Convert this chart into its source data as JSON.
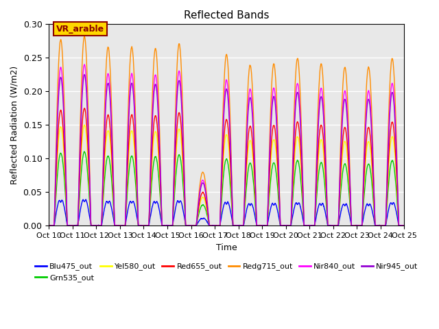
{
  "title": "Reflected Bands",
  "xlabel": "Time",
  "ylabel": "Reflected Radiation (W/m2)",
  "annotation": "VR_arable",
  "annotation_color": "#8B0000",
  "annotation_bg": "#FFD700",
  "ylim": [
    0,
    0.3
  ],
  "yticks": [
    0.0,
    0.05,
    0.1,
    0.15,
    0.2,
    0.25,
    0.3
  ],
  "xtick_labels": [
    "Oct 10",
    "Oct 11",
    "Oct 12",
    "Oct 13",
    "Oct 14",
    "Oct 15",
    "Oct 16",
    "Oct 17",
    "Oct 18",
    "Oct 19",
    "Oct 20",
    "Oct 21",
    "Oct 22",
    "Oct 23",
    "Oct 24",
    "Oct 25"
  ],
  "series_names": [
    "Blu475_out",
    "Grn535_out",
    "Yel580_out",
    "Red655_out",
    "Redg715_out",
    "Nir840_out",
    "Nir945_out"
  ],
  "series_colors": [
    "#0000FF",
    "#00CC00",
    "#FFFF00",
    "#FF0000",
    "#FF8C00",
    "#FF00FF",
    "#9400D3"
  ],
  "series_peaks": [
    0.042,
    0.11,
    0.15,
    0.175,
    0.282,
    0.24,
    0.225
  ],
  "day_peaks_orange": [
    0.278,
    0.283,
    0.267,
    0.267,
    0.265,
    0.272,
    0.08,
    0.256,
    0.24,
    0.242,
    0.25,
    0.242,
    0.237,
    0.237,
    0.25
  ],
  "bg_color": "#E8E8E8",
  "grid_color": "white",
  "num_days": 15,
  "pts_per_day": 100
}
